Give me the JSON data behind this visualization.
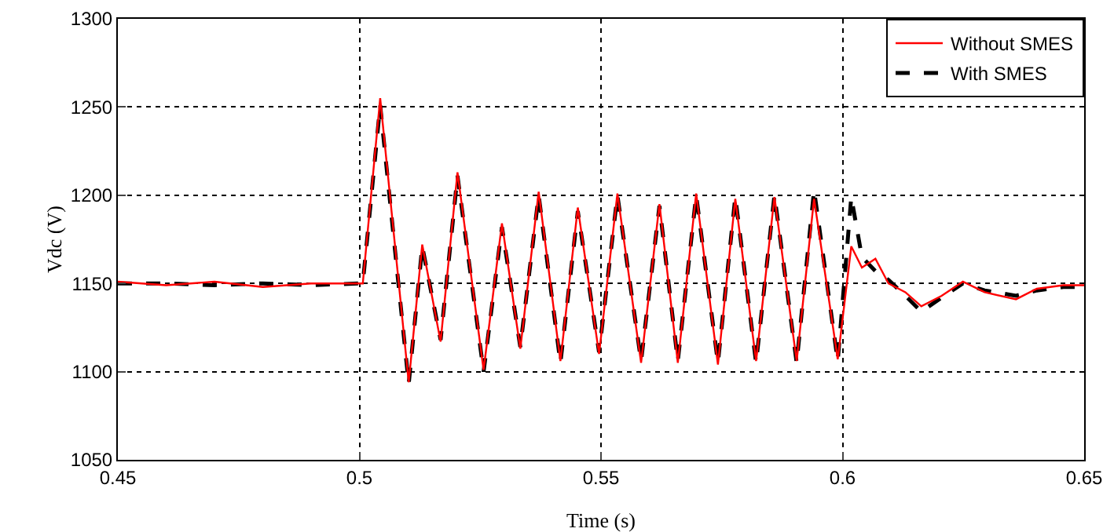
{
  "chart_data": {
    "type": "line",
    "xlabel": "Time (s)",
    "ylabel": "Vdc (V)",
    "x": [
      0.45,
      0.46,
      0.47,
      0.48,
      0.49,
      0.5,
      0.5007,
      0.5043,
      0.5102,
      0.513,
      0.5168,
      0.5203,
      0.5257,
      0.5295,
      0.5333,
      0.5371,
      0.5416,
      0.5452,
      0.5496,
      0.5534,
      0.5583,
      0.5621,
      0.5659,
      0.5697,
      0.5742,
      0.5778,
      0.5821,
      0.5859,
      0.5905,
      0.5941,
      0.599,
      0.6018,
      0.604,
      0.6068,
      0.6095,
      0.613,
      0.6163,
      0.6205,
      0.6249,
      0.6294,
      0.6359,
      0.6402,
      0.6457,
      0.65
    ],
    "series": [
      {
        "name": "Without SMES",
        "color": "#ff0000",
        "line_style": "solid",
        "values": [
          1151,
          1149,
          1151,
          1148,
          1150,
          1150,
          1150,
          1255,
          1094,
          1172,
          1117,
          1213,
          1101,
          1184,
          1113,
          1202,
          1106,
          1193,
          1110,
          1201,
          1105,
          1195,
          1105,
          1201,
          1104,
          1198,
          1106,
          1199,
          1106,
          1198,
          1107,
          1171,
          1159,
          1164,
          1150,
          1145,
          1137,
          1143,
          1151,
          1145,
          1141,
          1147,
          1149,
          1149
        ]
      },
      {
        "name": "With SMES",
        "color": "#000000",
        "line_style": "dashed",
        "values": [
          1150,
          1150,
          1149,
          1150,
          1149,
          1150,
          1150,
          1251,
          1093,
          1171,
          1118,
          1211,
          1100,
          1182,
          1114,
          1200,
          1105,
          1191,
          1111,
          1200,
          1106,
          1194,
          1106,
          1200,
          1105,
          1199,
          1105,
          1200,
          1105,
          1203,
          1106,
          1199,
          1165,
          1157,
          1152,
          1143,
          1134,
          1142,
          1150,
          1146,
          1143,
          1146,
          1148,
          1148
        ]
      }
    ],
    "xlim": [
      0.45,
      0.65
    ],
    "xticks": [
      0.45,
      0.5,
      0.55,
      0.6,
      0.65
    ],
    "ylim": [
      1050,
      1300
    ],
    "yticks": [
      1050,
      1100,
      1150,
      1200,
      1250,
      1300
    ],
    "grid": true,
    "legend": "top right"
  }
}
